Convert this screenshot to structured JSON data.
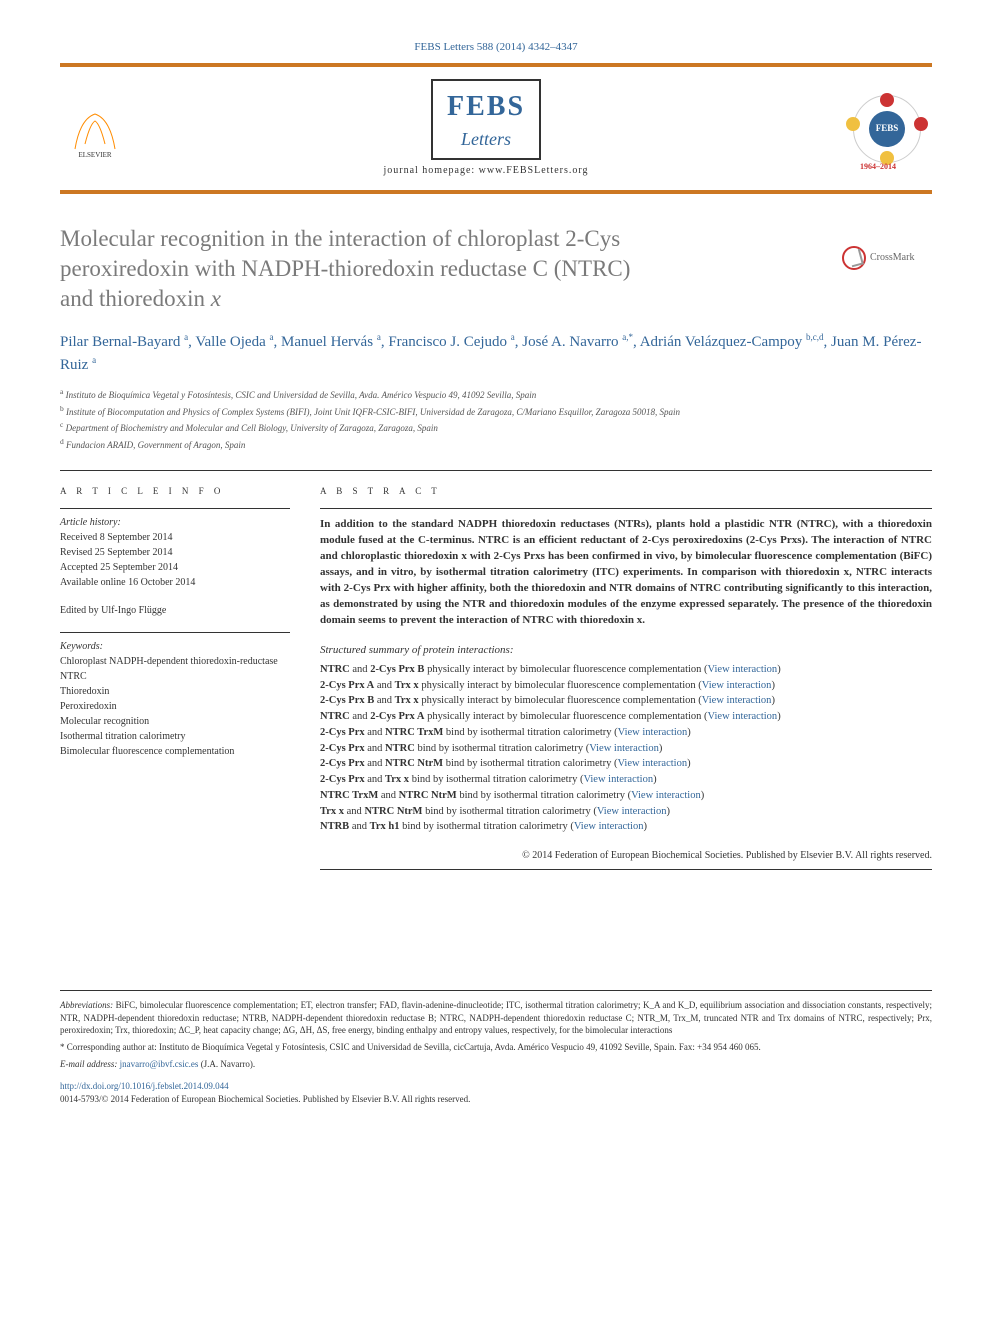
{
  "citation": "FEBS Letters 588 (2014) 4342–4347",
  "publisher_name": "ELSEVIER",
  "journal": {
    "title_main": "FEBS",
    "title_sub": "Letters",
    "homepage_label": "journal homepage: www.FEBSLetters.org",
    "febs_badge": "FEBS",
    "years": "1964–2014"
  },
  "crossmark_label": "CrossMark",
  "title_parts": {
    "line1": "Molecular recognition in the interaction of chloroplast 2-Cys",
    "line2": "peroxiredoxin with NADPH-thioredoxin reductase C (NTRC)",
    "line3_prefix": "and thioredoxin ",
    "line3_ital": "x"
  },
  "authors_html": "Pilar Bernal-Bayard <sup>a</sup>, Valle Ojeda <sup>a</sup>, Manuel Hervás <sup>a</sup>, Francisco J. Cejudo <sup>a</sup>, José A. Navarro <sup>a,*</sup>, Adrián Velázquez-Campoy <sup>b,c,d</sup>, Juan M. Pérez-Ruiz <sup>a</sup>",
  "affiliations": [
    {
      "sup": "a",
      "text": "Instituto de Bioquímica Vegetal y Fotosíntesis, CSIC and Universidad de Sevilla, Avda. Américo Vespucio 49, 41092 Sevilla, Spain"
    },
    {
      "sup": "b",
      "text": "Institute of Biocomputation and Physics of Complex Systems (BIFI), Joint Unit IQFR-CSIC-BIFI, Universidad de Zaragoza, C/Mariano Esquillor, Zaragoza 50018, Spain"
    },
    {
      "sup": "c",
      "text": "Department of Biochemistry and Molecular and Cell Biology, University of Zaragoza, Zaragoza, Spain"
    },
    {
      "sup": "d",
      "text": "Fundacion ARAID, Government of Aragon, Spain"
    }
  ],
  "article_info": {
    "header": "A R T I C L E   I N F O",
    "history_label": "Article history:",
    "history": [
      "Received 8 September 2014",
      "Revised 25 September 2014",
      "Accepted 25 September 2014",
      "Available online 16 October 2014"
    ],
    "edited_by": "Edited by Ulf-Ingo Flügge",
    "keywords_label": "Keywords:",
    "keywords": [
      "Chloroplast NADPH-dependent thioredoxin-reductase",
      "NTRC",
      "Thioredoxin",
      "Peroxiredoxin",
      "Molecular recognition",
      "Isothermal titration calorimetry",
      "Bimolecular fluorescence complementation"
    ]
  },
  "abstract": {
    "header": "A B S T R A C T",
    "text": "In addition to the standard NADPH thioredoxin reductases (NTRs), plants hold a plastidic NTR (NTRC), with a thioredoxin module fused at the C-terminus. NTRC is an efficient reductant of 2-Cys peroxiredoxins (2-Cys Prxs). The interaction of NTRC and chloroplastic thioredoxin x with 2-Cys Prxs has been confirmed in vivo, by bimolecular fluorescence complementation (BiFC) assays, and in vitro, by isothermal titration calorimetry (ITC) experiments. In comparison with thioredoxin x, NTRC interacts with 2-Cys Prx with higher affinity, both the thioredoxin and NTR domains of NTRC contributing significantly to this interaction, as demonstrated by using the NTR and thioredoxin modules of the enzyme expressed separately. The presence of the thioredoxin domain seems to prevent the interaction of NTRC with thioredoxin x."
  },
  "interactions": {
    "header": "Structured summary of protein interactions:",
    "items": [
      {
        "a": "NTRC",
        "b": "2-Cys Prx B",
        "verb": "physically interact",
        "method": "bimolecular fluorescence complementation"
      },
      {
        "a": "2-Cys Prx A",
        "b": "Trx x",
        "verb": "physically interact",
        "method": "bimolecular fluorescence complementation"
      },
      {
        "a": "2-Cys Prx B",
        "b": "Trx x",
        "verb": "physically interact",
        "method": "bimolecular fluorescence complementation"
      },
      {
        "a": "NTRC",
        "b": "2-Cys Prx A",
        "verb": "physically interact",
        "method": "bimolecular fluorescence complementation"
      },
      {
        "a": "2-Cys Prx",
        "b": "NTRC TrxM",
        "verb": "bind",
        "method": "isothermal titration calorimetry"
      },
      {
        "a": "2-Cys Prx",
        "b": "NTRC",
        "verb": "bind",
        "method": "isothermal titration calorimetry"
      },
      {
        "a": "2-Cys Prx",
        "b": "NTRC NtrM",
        "verb": "bind",
        "method": "isothermal titration calorimetry"
      },
      {
        "a": "2-Cys Prx",
        "b": "Trx x",
        "verb": "bind",
        "method": "isothermal titration calorimetry"
      },
      {
        "a": "NTRC TrxM",
        "b": "NTRC NtrM",
        "verb": "bind",
        "method": "isothermal titration calorimetry"
      },
      {
        "a": "Trx x",
        "b": "NTRC NtrM",
        "verb": "bind",
        "method": "isothermal titration calorimetry"
      },
      {
        "a": "NTRB",
        "b": "Trx h1",
        "verb": "bind",
        "method": "isothermal titration calorimetry"
      }
    ],
    "view_label": "View interaction"
  },
  "copyright": "© 2014 Federation of European Biochemical Societies. Published by Elsevier B.V. All rights reserved.",
  "footer": {
    "abbrev_label": "Abbreviations:",
    "abbrev_text": "BiFC, bimolecular fluorescence complementation; ET, electron transfer; FAD, flavin-adenine-dinucleotide; ITC, isothermal titration calorimetry; K_A and K_D, equilibrium association and dissociation constants, respectively; NTR, NADPH-dependent thioredoxin reductase; NTRB, NADPH-dependent thioredoxin reductase B; NTRC, NADPH-dependent thioredoxin reductase C; NTR_M, Trx_M, truncated NTR and Trx domains of NTRC, respectively; Prx, peroxiredoxin; Trx, thioredoxin; ΔC_P, heat capacity change; ΔG, ΔH, ΔS, free energy, binding enthalpy and entropy values, respectively, for the bimolecular interactions",
    "corresponding_label": "* Corresponding author at:",
    "corresponding_text": "Instituto de Bioquímica Vegetal y Fotosíntesis, CSIC and Universidad de Sevilla, cicCartuja, Avda. Américo Vespucio 49, 41092 Seville, Spain. Fax: +34 954 460 065.",
    "email_label": "E-mail address:",
    "email": "jnavarro@ibvf.csic.es",
    "email_person": "(J.A. Navarro).",
    "doi": "http://dx.doi.org/10.1016/j.febslet.2014.09.044",
    "issn_line": "0014-5793/© 2014 Federation of European Biochemical Societies. Published by Elsevier B.V. All rights reserved."
  },
  "colors": {
    "link": "#336699",
    "rule": "#cc7722",
    "title_gray": "#7a7a7a"
  }
}
